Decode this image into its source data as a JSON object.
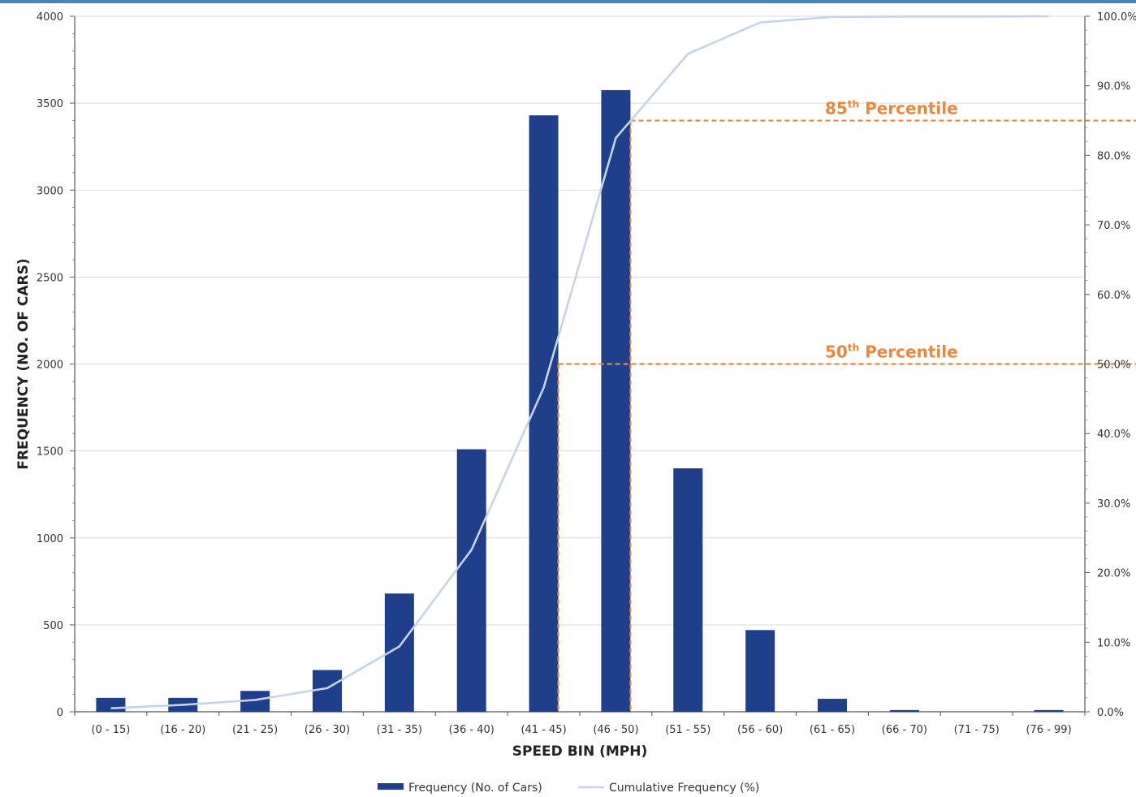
{
  "chart_data": {
    "type": "bar",
    "xlabel": "SPEED BIN (MPH)",
    "ylabel": "FREQUENCY (NO. OF CARS)",
    "categories": [
      "(0 - 15)",
      "(16 - 20)",
      "(21 - 25)",
      "(26 - 30)",
      "(31 - 35)",
      "(36 - 40)",
      "(41 - 45)",
      "(46 - 50)",
      "(51 - 55)",
      "(56 - 60)",
      "(61 - 65)",
      "(66 - 70)",
      "(71 - 75)",
      "(76 - 99)"
    ],
    "ylim": [
      0,
      4000
    ],
    "y_ticks": [
      "0",
      "500",
      "1000",
      "1500",
      "2000",
      "2500",
      "3000",
      "3500",
      "4000"
    ],
    "y2lim": [
      0,
      100
    ],
    "y2_ticks": [
      "0.0%",
      "10.0%",
      "20.0%",
      "30.0%",
      "40.0%",
      "50.0%",
      "60.0%",
      "70.0%",
      "80.0%",
      "90.0%",
      "100.0%"
    ],
    "grid": true,
    "legend_position": "bottom",
    "series": [
      {
        "name": "Frequency (No. of Cars)",
        "type": "bar",
        "axis": "left",
        "color": "#1f3f8a",
        "values": [
          80,
          80,
          120,
          240,
          680,
          1510,
          3430,
          3575,
          1400,
          470,
          75,
          10,
          0,
          10
        ]
      },
      {
        "name": "Cumulative Frequency (%)",
        "type": "line",
        "axis": "right",
        "color": "#c5d3ea",
        "values": [
          0.5,
          1.0,
          1.7,
          3.4,
          9.4,
          23.3,
          46.6,
          82.5,
          94.6,
          99.1,
          99.9,
          99.95,
          99.95,
          100.0
        ]
      }
    ],
    "annotations": [
      {
        "label_main": "85",
        "label_sup": "th",
        "label_rest": " Percentile",
        "value": 85,
        "category_index": 7,
        "color": "#e8883a"
      },
      {
        "label_main": "50",
        "label_sup": "th",
        "label_rest": " Percentile",
        "value": 50,
        "category_index": 6,
        "color": "#e8883a"
      }
    ]
  }
}
